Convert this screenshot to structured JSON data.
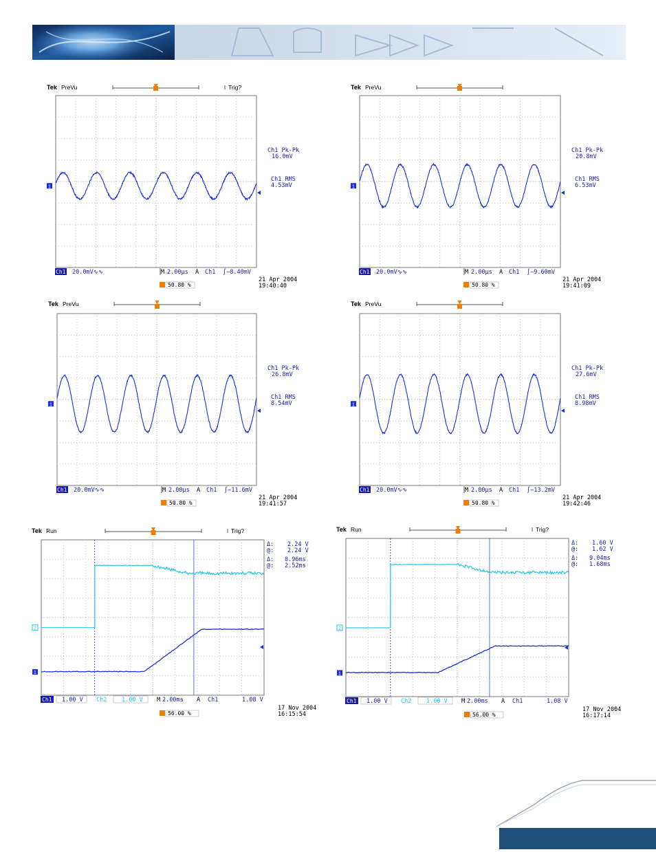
{
  "colors": {
    "trace": "#1a2ee0",
    "trace2": "#22c8e0",
    "text": "#1a1aa8",
    "orange": "#f07d00",
    "grid": "#b8b8b8",
    "navy": "#1f4e79"
  },
  "scopes": [
    {
      "id": "s1",
      "brand": "Tek",
      "mode": "PreVu",
      "trig": "Trig?",
      "meas1_label": "Ch1 Pk-Pk",
      "meas1_value": "16.0mV",
      "meas2_label": "Ch1 RMS",
      "meas2_value": "4.53mV",
      "ch": "Ch1",
      "volts": "20.0mV",
      "bw": "∿∿",
      "time_m": "M",
      "time": "2.00µs",
      "trig_a": "A",
      "trig_ch": "Ch1",
      "trig_level": "∫−8.40mV",
      "date": "21 Apr 2004",
      "time_stamp": "19:40:40",
      "pct": "50.80 %",
      "amp": 0.28,
      "cycles": 6
    },
    {
      "id": "s2",
      "brand": "Tek",
      "mode": "PreVu",
      "trig": "",
      "meas1_label": "Ch1 Pk-Pk",
      "meas1_value": "20.8mV",
      "meas2_label": "Ch1 RMS",
      "meas2_value": "6.53mV",
      "ch": "Ch1",
      "volts": "20.0mV",
      "bw": "∿∿",
      "time_m": "M",
      "time": "2.00µs",
      "trig_a": "A",
      "trig_ch": "Ch1",
      "trig_level": "∫−9.60mV",
      "date": "21 Apr 2004",
      "time_stamp": "19:41:09",
      "pct": "50.80 %",
      "amp": 0.45,
      "cycles": 6
    },
    {
      "id": "s3",
      "brand": "Tek",
      "mode": "PreVu",
      "trig": "",
      "meas1_label": "Ch1 Pk-Pk",
      "meas1_value": "26.8mV",
      "meas2_label": "Ch1 RMS",
      "meas2_value": "8.54mV",
      "ch": "Ch1",
      "volts": "20.0mV",
      "bw": "∿∿",
      "time_m": "M",
      "time": "2.00µs",
      "trig_a": "A",
      "trig_ch": "Ch1",
      "trig_level": "∫−11.6mV",
      "date": "21 Apr 2004",
      "time_stamp": "19:41:57",
      "pct": "50.80 %",
      "amp": 0.6,
      "cycles": 6
    },
    {
      "id": "s4",
      "brand": "Tek",
      "mode": "PreVu",
      "trig": "",
      "meas1_label": "Ch1 Pk-Pk",
      "meas1_value": "27.6mV",
      "meas2_label": "Ch1 RMS",
      "meas2_value": "8.98mV",
      "ch": "Ch1",
      "volts": "20.0mV",
      "bw": "∿∿",
      "time_m": "M",
      "time": "2.00µs",
      "trig_a": "A",
      "trig_ch": "Ch1",
      "trig_level": "∫−13.2mV",
      "date": "21 Apr 2004",
      "time_stamp": "19:42:46",
      "pct": "50.80 %",
      "amp": 0.62,
      "cycles": 6
    }
  ],
  "startup": [
    {
      "id": "s5",
      "brand": "Tek",
      "mode": "Run",
      "trig": "Trig?",
      "d1_label": "Δ:",
      "d1_value": "2.24 V",
      "a1_label": "@:",
      "a1_value": "2.24 V",
      "d2_label": "Δ:",
      "d2_value": "8.96ms",
      "a2_label": "@:",
      "a2_value": "2.52ms",
      "ch1": "Ch1",
      "v1": "1.00 V",
      "ch2": "Ch2",
      "v2": "1.00 V",
      "time_m": "M",
      "time": "2.00ms",
      "trig_a": "A",
      "trig_ch": "Ch1",
      "trig_level": "1.08 V",
      "date": "17 Nov 2004",
      "time_stamp": "16:15:54",
      "pct": "56.00 %"
    },
    {
      "id": "s6",
      "brand": "Tek",
      "mode": "Run",
      "trig": "Trig?",
      "d1_label": "Δ:",
      "d1_value": "1.60 V",
      "a1_label": "@:",
      "a1_value": "1.62 V",
      "d2_label": "Δ:",
      "d2_value": "9.04ms",
      "a2_label": "@:",
      "a2_value": "1.68ms",
      "ch1": "Ch1",
      "v1": "1.00 V",
      "ch2": "Ch2",
      "v2": "1.00 V",
      "time_m": "M",
      "time": "2.00ms",
      "trig_a": "A",
      "trig_ch": "Ch1",
      "trig_level": "1.08 V",
      "date": "17 Nov 2004",
      "time_stamp": "16:17:14",
      "pct": "56.00 %"
    }
  ]
}
